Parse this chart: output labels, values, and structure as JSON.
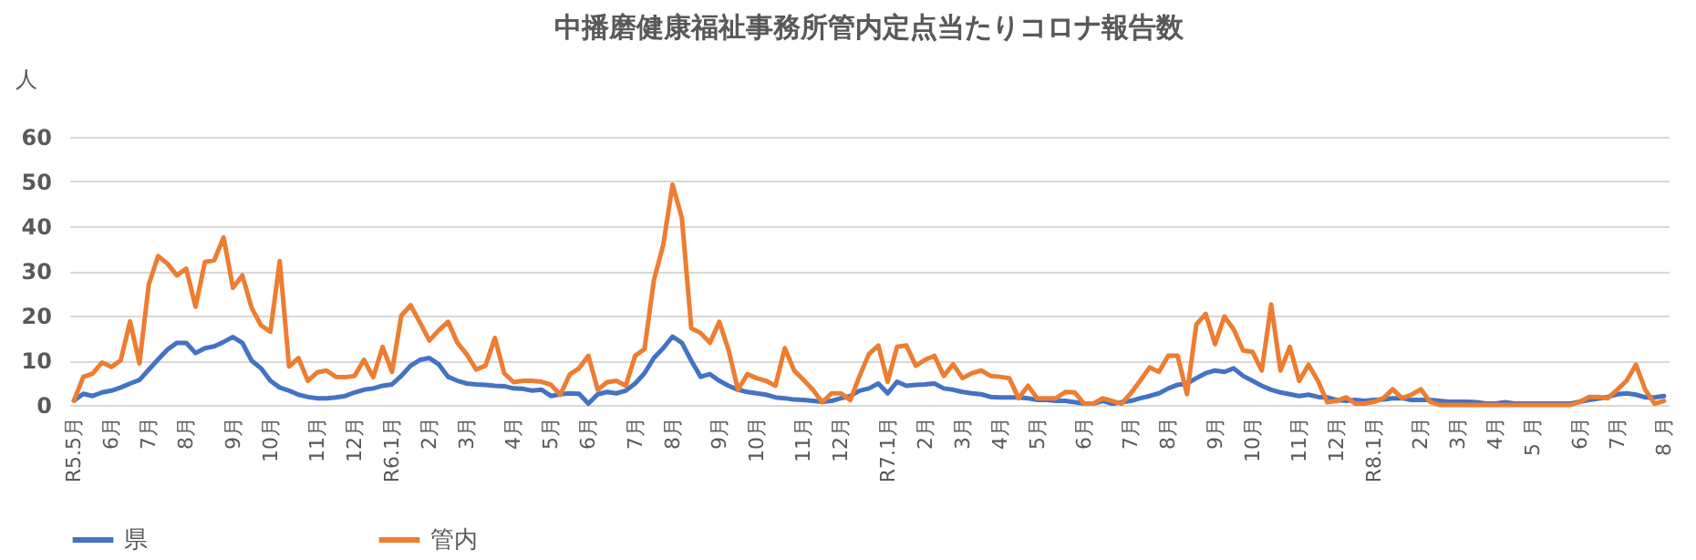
{
  "chart_data": {
    "type": "line",
    "title": "中播磨健康福祉事務所管内定点当たりコロナ報告数",
    "ylabel": "人",
    "categories": [
      "R5.5月",
      null,
      null,
      null,
      "6月",
      null,
      null,
      null,
      "7月",
      null,
      null,
      null,
      "8月",
      null,
      null,
      null,
      null,
      "9月",
      null,
      null,
      null,
      "10月",
      null,
      null,
      null,
      null,
      "11月",
      null,
      null,
      null,
      "12月",
      null,
      null,
      null,
      "R6.1月",
      null,
      null,
      null,
      "2月",
      null,
      null,
      null,
      "3月",
      null,
      null,
      null,
      null,
      "4月",
      null,
      null,
      null,
      "5月",
      null,
      null,
      null,
      "6月",
      null,
      null,
      null,
      null,
      "7月",
      null,
      null,
      null,
      "8月",
      null,
      null,
      null,
      null,
      "9月",
      null,
      null,
      null,
      "10月",
      null,
      null,
      null,
      null,
      "11月",
      null,
      null,
      null,
      "12月",
      null,
      null,
      null,
      null,
      "R7.1月",
      null,
      null,
      null,
      "2月",
      null,
      null,
      null,
      "3月",
      null,
      null,
      null,
      "4月",
      null,
      null,
      null,
      "5月",
      null,
      null,
      null,
      null,
      "6月",
      null,
      null,
      null,
      null,
      "7月",
      null,
      null,
      null,
      "8月",
      null,
      null,
      null,
      null,
      "9月",
      null,
      null,
      null,
      "10月",
      null,
      null,
      null,
      null,
      "11月",
      null,
      null,
      null,
      "12月",
      null,
      null,
      null,
      "R8.1月",
      null,
      null,
      null,
      null,
      "2月",
      null,
      null,
      null,
      "3月",
      null,
      null,
      null,
      "4月",
      null,
      null,
      null,
      "5 月",
      null,
      null,
      null,
      null,
      "6月",
      null,
      null,
      null,
      "7月",
      null,
      null,
      null,
      null,
      "8 月"
    ],
    "series": [
      {
        "name": "県",
        "color": "#4472c4",
        "values": [
          1,
          2.5,
          2,
          2.8,
          3.2,
          3.9,
          4.8,
          5.6,
          7.9,
          10.2,
          12.4,
          13.9,
          13.9,
          11.6,
          12.7,
          13.1,
          14.1,
          15.2,
          13.9,
          9.9,
          8.2,
          5.4,
          3.9,
          3.2,
          2.3,
          1.8,
          1.5,
          1.5,
          1.7,
          2,
          2.8,
          3.4,
          3.7,
          4.3,
          4.6,
          6.5,
          8.8,
          10.1,
          10.5,
          9.1,
          6.3,
          5.4,
          4.8,
          4.6,
          4.5,
          4.3,
          4.2,
          3.7,
          3.6,
          3.2,
          3.4,
          2,
          2.4,
          2.6,
          2.5,
          0.3,
          2.4,
          2.9,
          2.6,
          3.2,
          4.8,
          7.1,
          10.5,
          12.7,
          15.3,
          13.9,
          9.9,
          6.3,
          6.9,
          5.4,
          4.3,
          3.4,
          2.9,
          2.6,
          2.3,
          1.7,
          1.5,
          1.2,
          1.1,
          0.9,
          0.7,
          0.9,
          1.5,
          2,
          3.2,
          3.7,
          4.8,
          2.6,
          5.2,
          4.3,
          4.5,
          4.6,
          4.8,
          3.7,
          3.4,
          2.9,
          2.6,
          2.4,
          1.8,
          1.7,
          1.7,
          1.7,
          1.5,
          1.1,
          1.1,
          0.9,
          0.9,
          0.6,
          0.3,
          0.3,
          0.9,
          0.3,
          0.6,
          0.9,
          1.5,
          2,
          2.6,
          3.7,
          4.5,
          4.8,
          6,
          7.1,
          7.7,
          7.4,
          8.2,
          6.5,
          5.4,
          4.3,
          3.4,
          2.8,
          2.4,
          2,
          2.3,
          1.8,
          1.7,
          1.1,
          0.9,
          1.1,
          0.9,
          1.1,
          1.2,
          1.5,
          1.5,
          1.1,
          1.1,
          1.1,
          0.9,
          0.7,
          0.7,
          0.7,
          0.6,
          0.3,
          0.3,
          0.6,
          0.3,
          0.3,
          0.3,
          0.3,
          0.3,
          0.3,
          0.3,
          0.7,
          1.1,
          1.4,
          1.8,
          2.4,
          2.6,
          2.3,
          1.7,
          1.7,
          2
        ]
      },
      {
        "name": "管内",
        "color": "#ed7d31",
        "values": [
          1,
          6.3,
          7,
          9.5,
          8.5,
          10,
          18.7,
          9.3,
          27,
          33.3,
          31.6,
          29,
          30.5,
          22,
          32,
          32.4,
          37.5,
          26.2,
          29,
          21.7,
          17.8,
          16.4,
          32.2,
          8.6,
          10.5,
          5.4,
          7.3,
          7.7,
          6.3,
          6.2,
          6.5,
          10.1,
          6.2,
          13,
          7.4,
          20,
          22.3,
          18.4,
          14.4,
          16.7,
          18.6,
          13.9,
          11.3,
          7.9,
          8.8,
          15,
          7.1,
          5.1,
          5.4,
          5.4,
          5.2,
          4.5,
          2.3,
          6.8,
          8.2,
          11,
          3.4,
          5.1,
          5.4,
          4.3,
          11,
          12.5,
          27.9,
          35.8,
          49.3,
          41.8,
          17.2,
          16.1,
          13.9,
          18.6,
          12.2,
          3.4,
          6.9,
          6,
          5.4,
          4.3,
          12.7,
          7.7,
          5.6,
          3.4,
          0.6,
          2.6,
          2.6,
          1.1,
          6.5,
          11.4,
          13.3,
          5.2,
          13,
          13.3,
          8.8,
          10.1,
          11,
          6.5,
          9.1,
          6,
          7.1,
          7.7,
          6.5,
          6.3,
          6,
          1.5,
          4.3,
          1.5,
          1.5,
          1.5,
          2.9,
          2.8,
          0.3,
          0.3,
          1.5,
          0.9,
          0.3,
          2.6,
          5.4,
          8.4,
          7.4,
          11,
          11,
          2.4,
          18,
          20.4,
          13.6,
          19.8,
          16.9,
          12.2,
          11.9,
          7.7,
          22.5,
          7.7,
          13,
          5.4,
          9,
          5.4,
          0.6,
          0.9,
          1.7,
          0.3,
          0.3,
          0.7,
          1.5,
          3.5,
          1.5,
          2.3,
          3.5,
          0.7,
          0,
          0,
          0,
          0,
          0,
          0,
          0,
          0,
          0,
          0,
          0,
          0,
          0,
          0,
          0,
          0.7,
          1.8,
          1.8,
          1.5,
          3.4,
          5.4,
          9,
          3.4,
          0.3,
          0.9
        ]
      }
    ],
    "ylim": [
      0,
      60
    ],
    "yticks": [
      0,
      10,
      20,
      30,
      40,
      50,
      60
    ],
    "grid": "y",
    "legend": "bottom"
  }
}
